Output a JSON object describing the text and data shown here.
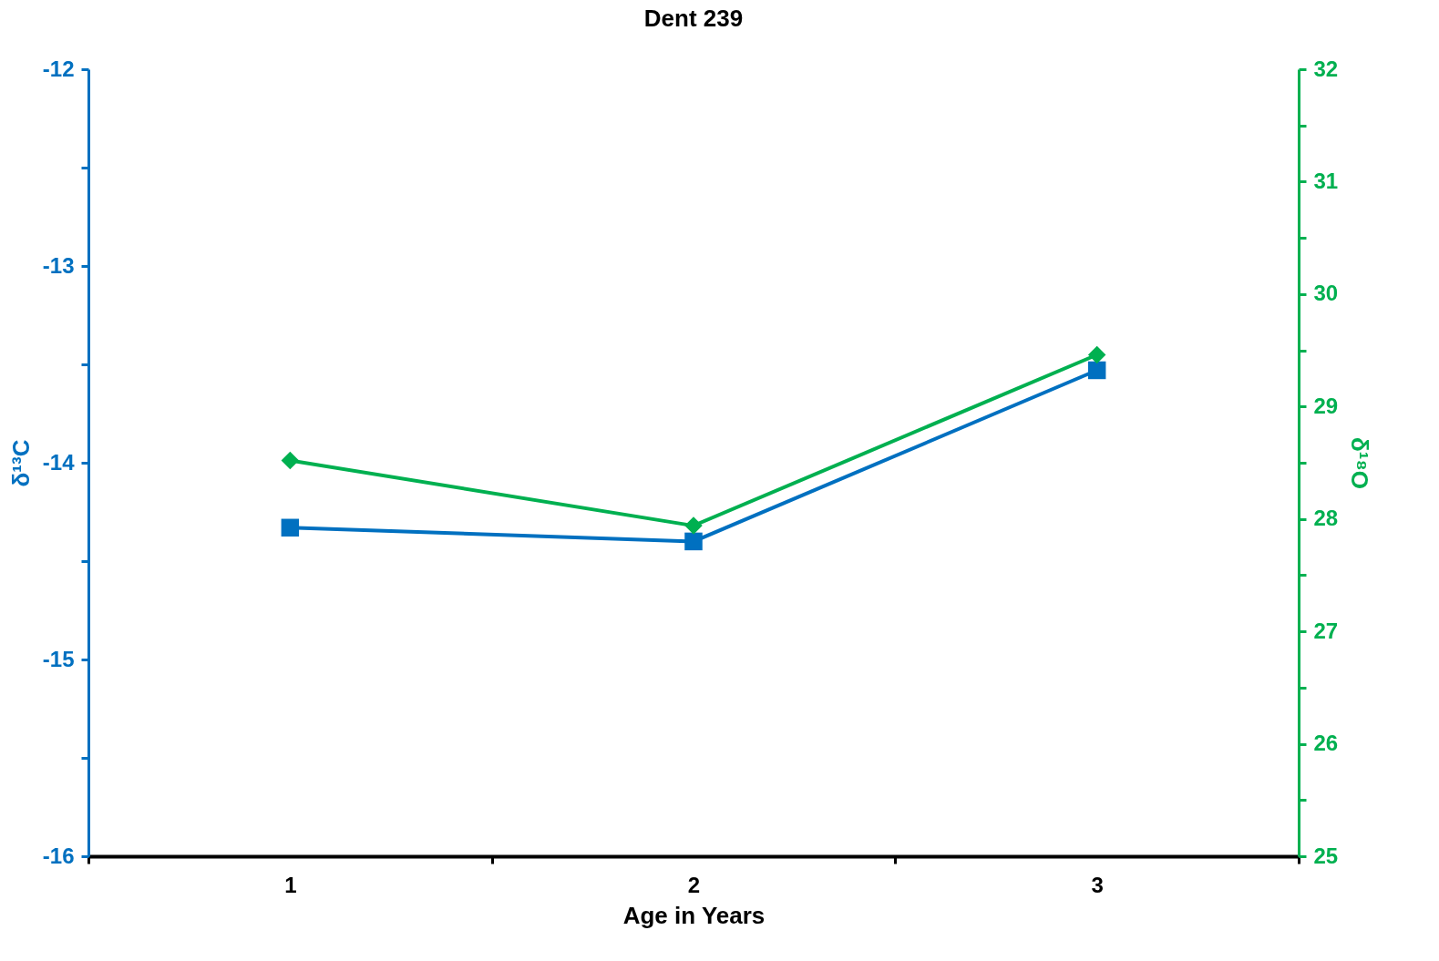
{
  "chart_data": {
    "type": "line",
    "title": "Dent 239",
    "xlabel": "Age in Years",
    "ylabel": "δ¹³C",
    "y2label": "δ¹⁸O",
    "categories": [
      "1",
      "2",
      "3"
    ],
    "series": [
      {
        "color": "#0070c0",
        "marker": "square",
        "values": [
          -14.33,
          -14.4,
          -13.53
        ]
      },
      {
        "color": "#00b050",
        "marker": "diamond",
        "axis": "y2",
        "values": [
          28.52,
          27.94,
          29.46
        ]
      }
    ],
    "ylim": [
      -16,
      -12
    ],
    "yticks": [
      -16,
      {
        "value": -15.5,
        "label": null
      },
      -15,
      {
        "value": -14.5,
        "label": null
      },
      -14,
      {
        "value": -13.5,
        "label": null
      },
      -13,
      {
        "value": -12.5,
        "label": null
      },
      -12
    ],
    "y2lim": [
      25,
      32
    ],
    "y2ticks": [
      25,
      {
        "value": 25.5,
        "label": null
      },
      26,
      {
        "value": 26.5,
        "label": null
      },
      27,
      {
        "value": 27.5,
        "label": null
      },
      28,
      {
        "value": 28.5,
        "label": null
      },
      29,
      {
        "value": 29.5,
        "label": null
      },
      30,
      {
        "value": 30.5,
        "label": null
      },
      31,
      {
        "value": 31.5,
        "label": null
      },
      32
    ],
    "grid": false,
    "legend": false,
    "line_style": "solid"
  }
}
